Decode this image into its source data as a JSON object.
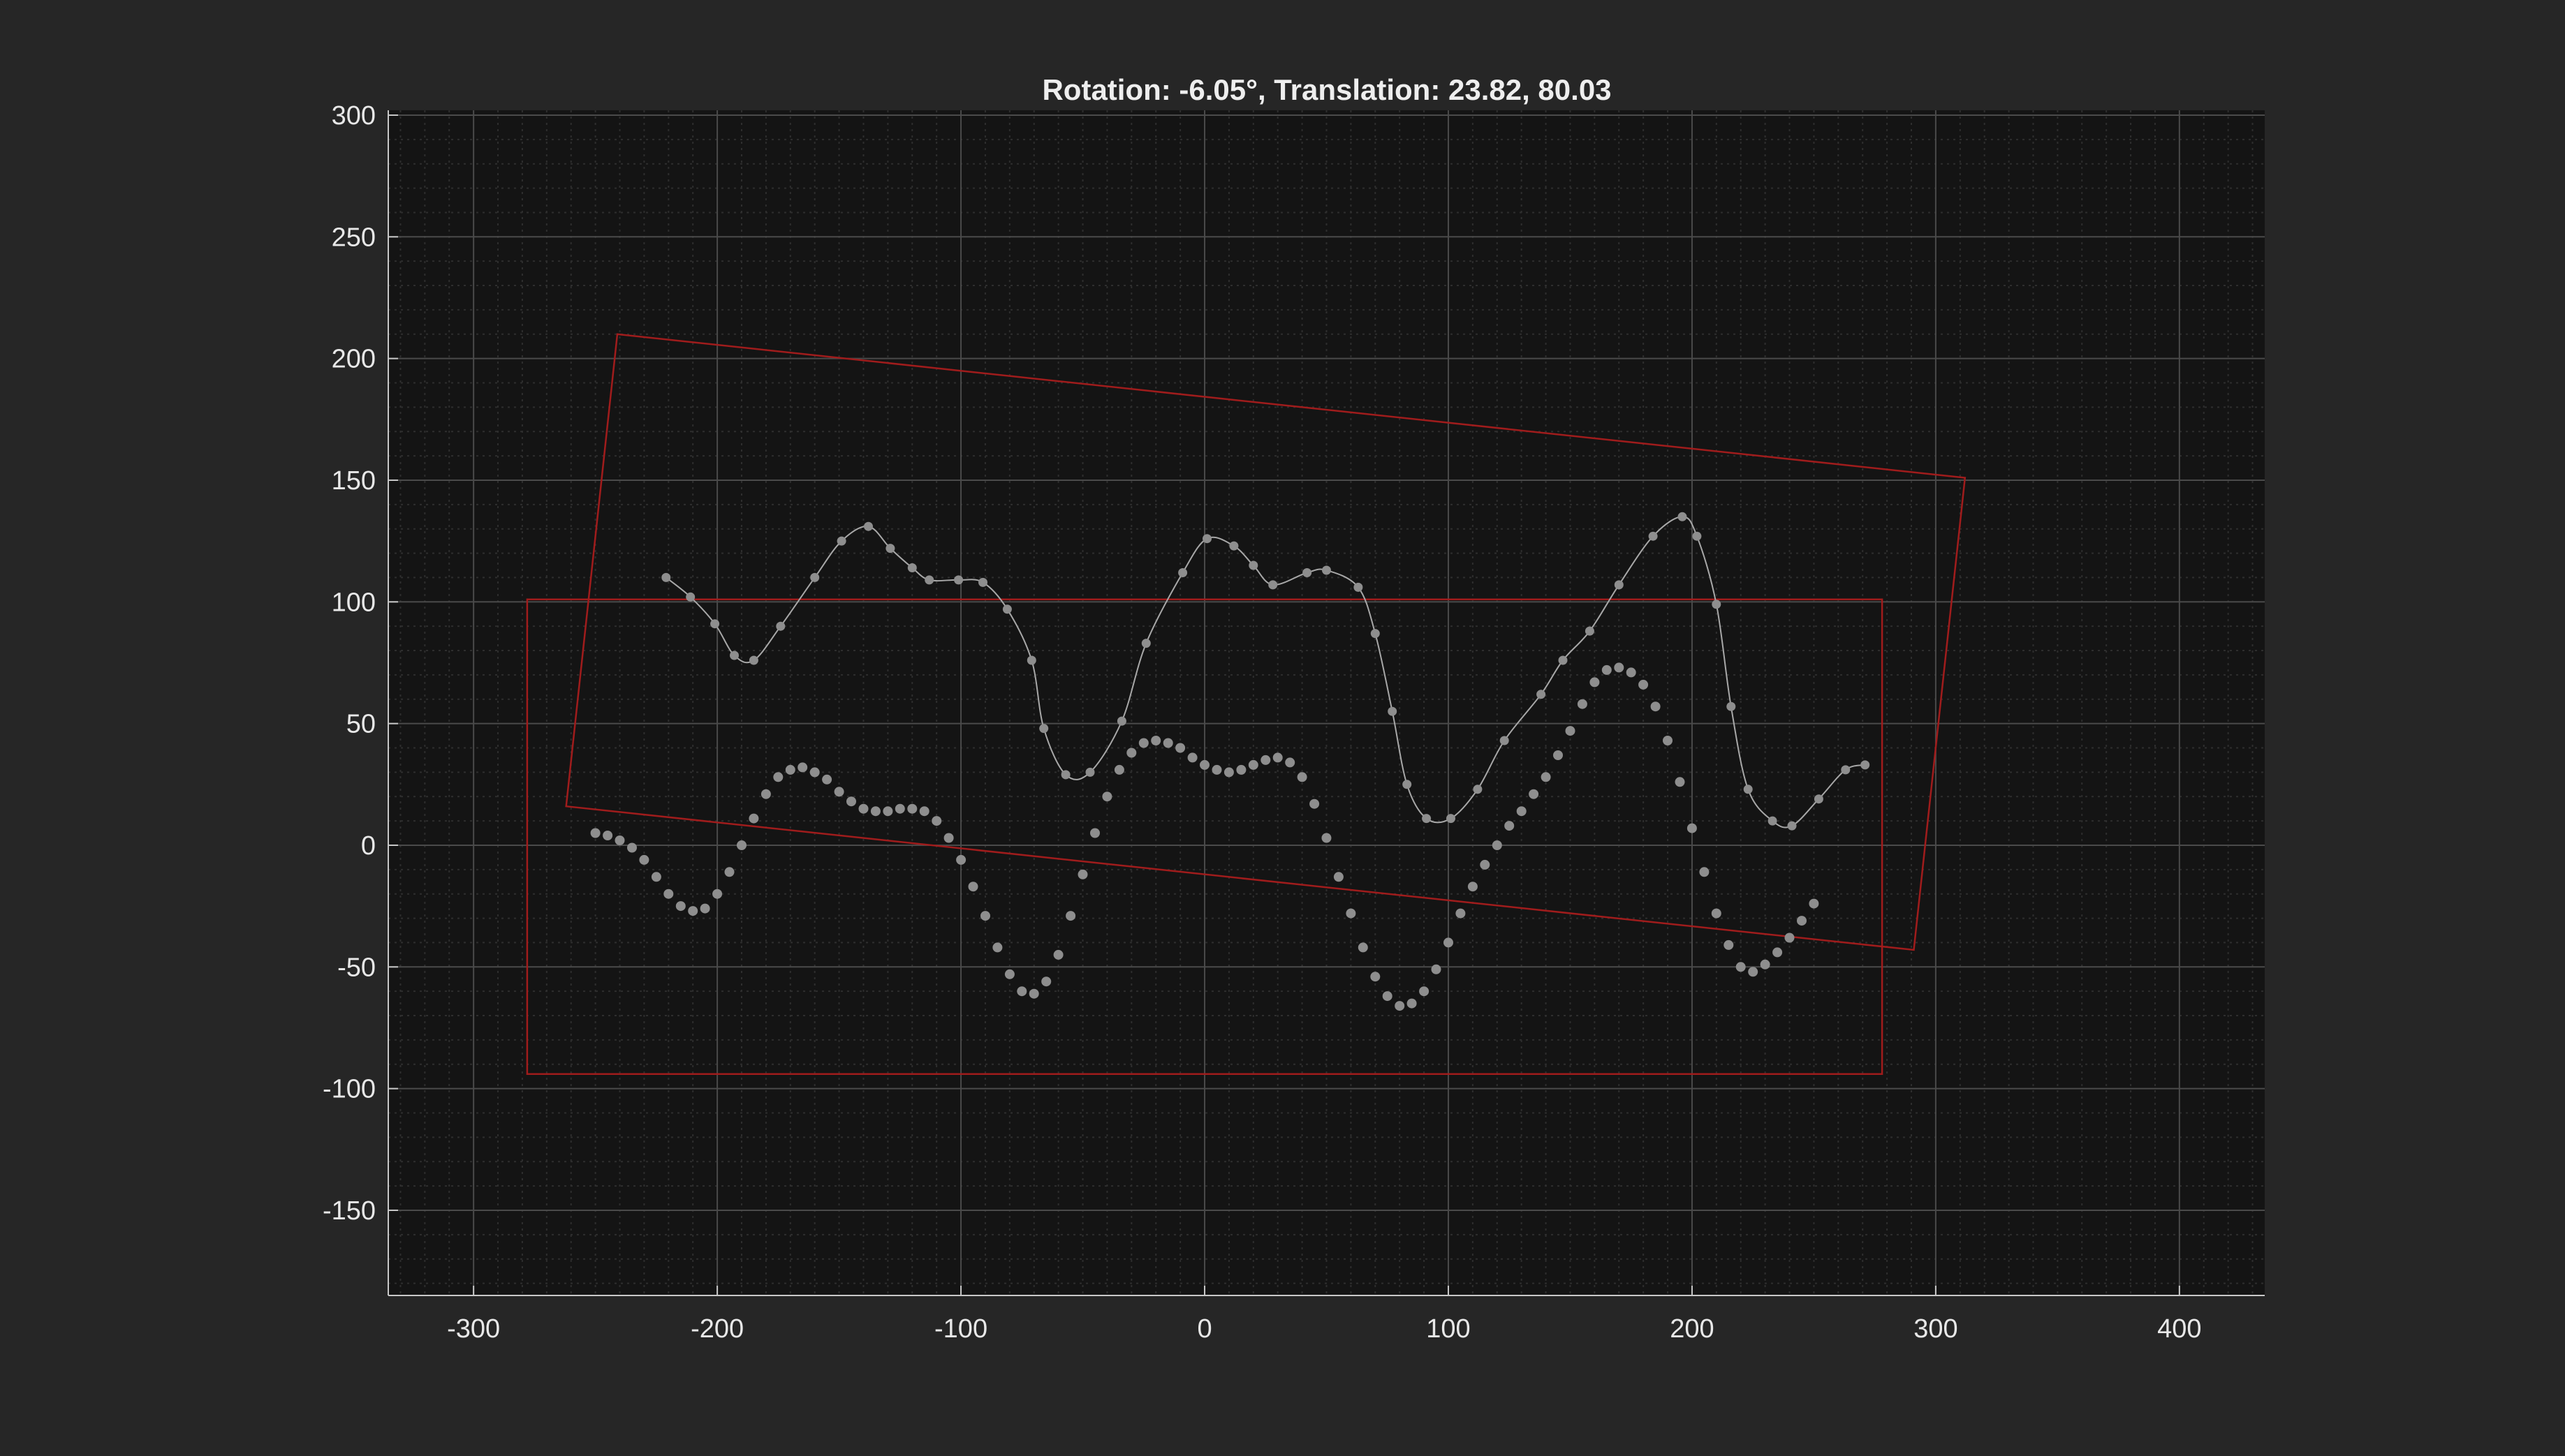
{
  "chart_data": {
    "type": "line",
    "title": "Rotation: -6.05°, Translation: 23.82, 80.03",
    "xlabel": "",
    "ylabel": "",
    "xlim": [
      -335,
      435
    ],
    "ylim": [
      -185,
      302
    ],
    "xticks": [
      -300,
      -200,
      -100,
      0,
      100,
      200,
      300,
      400
    ],
    "yticks": [
      -150,
      -100,
      -50,
      0,
      50,
      100,
      150,
      200,
      250,
      300
    ],
    "grid": true,
    "minor_grid": true,
    "colors": {
      "background": "#262626",
      "axes": "#141414",
      "major_grid": "#4a4a4a",
      "minor_grid": "#2e2e2e",
      "axis_line": "#c8c8c8",
      "text": "#e8e8e8",
      "marker": "#8e8e8e",
      "curve": "#a8a8a8",
      "box": "#a01c1c"
    },
    "series": [
      {
        "style": "markers+spline",
        "points": [
          [
            -221,
            110
          ],
          [
            -211,
            102
          ],
          [
            -201,
            91
          ],
          [
            -193,
            78
          ],
          [
            -185,
            76
          ],
          [
            -174,
            90
          ],
          [
            -160,
            110
          ],
          [
            -149,
            125
          ],
          [
            -138,
            131
          ],
          [
            -129,
            122
          ],
          [
            -120,
            114
          ],
          [
            -113,
            109
          ],
          [
            -101,
            109
          ],
          [
            -91,
            108
          ],
          [
            -81,
            97
          ],
          [
            -71,
            76
          ],
          [
            -66,
            48
          ],
          [
            -57,
            29
          ],
          [
            -47,
            30
          ],
          [
            -34,
            51
          ],
          [
            -24,
            83
          ],
          [
            -9,
            112
          ],
          [
            1,
            126
          ],
          [
            12,
            123
          ],
          [
            20,
            115
          ],
          [
            28,
            107
          ],
          [
            42,
            112
          ],
          [
            50,
            113
          ],
          [
            63,
            106
          ],
          [
            70,
            87
          ],
          [
            77,
            55
          ],
          [
            83,
            25
          ],
          [
            91,
            11
          ],
          [
            101,
            11
          ],
          [
            112,
            23
          ],
          [
            123,
            43
          ],
          [
            138,
            62
          ],
          [
            147,
            76
          ],
          [
            158,
            88
          ],
          [
            170,
            107
          ],
          [
            184,
            127
          ],
          [
            196,
            135
          ],
          [
            202,
            127
          ],
          [
            210,
            99
          ],
          [
            216,
            57
          ],
          [
            223,
            23
          ],
          [
            233,
            10
          ],
          [
            241,
            8
          ],
          [
            252,
            19
          ],
          [
            263,
            31
          ],
          [
            271,
            33
          ]
        ]
      },
      {
        "style": "markers-dense",
        "points": [
          [
            -250,
            5
          ],
          [
            -245,
            4
          ],
          [
            -240,
            2
          ],
          [
            -235,
            -1
          ],
          [
            -230,
            -6
          ],
          [
            -225,
            -13
          ],
          [
            -220,
            -20
          ],
          [
            -215,
            -25
          ],
          [
            -210,
            -27
          ],
          [
            -205,
            -26
          ],
          [
            -200,
            -20
          ],
          [
            -195,
            -11
          ],
          [
            -190,
            0
          ],
          [
            -185,
            11
          ],
          [
            -180,
            21
          ],
          [
            -175,
            28
          ],
          [
            -170,
            31
          ],
          [
            -165,
            32
          ],
          [
            -160,
            30
          ],
          [
            -155,
            27
          ],
          [
            -150,
            22
          ],
          [
            -145,
            18
          ],
          [
            -140,
            15
          ],
          [
            -135,
            14
          ],
          [
            -130,
            14
          ],
          [
            -125,
            15
          ],
          [
            -120,
            15
          ],
          [
            -115,
            14
          ],
          [
            -110,
            10
          ],
          [
            -105,
            3
          ],
          [
            -100,
            -6
          ],
          [
            -95,
            -17
          ],
          [
            -90,
            -29
          ],
          [
            -85,
            -42
          ],
          [
            -80,
            -53
          ],
          [
            -75,
            -60
          ],
          [
            -70,
            -61
          ],
          [
            -65,
            -56
          ],
          [
            -60,
            -45
          ],
          [
            -55,
            -29
          ],
          [
            -50,
            -12
          ],
          [
            -45,
            5
          ],
          [
            -40,
            20
          ],
          [
            -35,
            31
          ],
          [
            -30,
            38
          ],
          [
            -25,
            42
          ],
          [
            -20,
            43
          ],
          [
            -15,
            42
          ],
          [
            -10,
            40
          ],
          [
            -5,
            36
          ],
          [
            0,
            33
          ],
          [
            5,
            31
          ],
          [
            10,
            30
          ],
          [
            15,
            31
          ],
          [
            20,
            33
          ],
          [
            25,
            35
          ],
          [
            30,
            36
          ],
          [
            35,
            34
          ],
          [
            40,
            28
          ],
          [
            45,
            17
          ],
          [
            50,
            3
          ],
          [
            55,
            -13
          ],
          [
            60,
            -28
          ],
          [
            65,
            -42
          ],
          [
            70,
            -54
          ],
          [
            75,
            -62
          ],
          [
            80,
            -66
          ],
          [
            85,
            -65
          ],
          [
            90,
            -60
          ],
          [
            95,
            -51
          ],
          [
            100,
            -40
          ],
          [
            105,
            -28
          ],
          [
            110,
            -17
          ],
          [
            115,
            -8
          ],
          [
            120,
            0
          ],
          [
            125,
            8
          ],
          [
            130,
            14
          ],
          [
            135,
            21
          ],
          [
            140,
            28
          ],
          [
            145,
            37
          ],
          [
            150,
            47
          ],
          [
            155,
            58
          ],
          [
            160,
            67
          ],
          [
            165,
            72
          ],
          [
            170,
            73
          ],
          [
            175,
            71
          ],
          [
            180,
            66
          ],
          [
            185,
            57
          ],
          [
            190,
            43
          ],
          [
            195,
            26
          ],
          [
            200,
            7
          ],
          [
            205,
            -11
          ],
          [
            210,
            -28
          ],
          [
            215,
            -41
          ],
          [
            220,
            -50
          ],
          [
            225,
            -52
          ],
          [
            230,
            -49
          ],
          [
            235,
            -44
          ],
          [
            240,
            -38
          ],
          [
            245,
            -31
          ],
          [
            250,
            -24
          ]
        ]
      }
    ],
    "rectangles": [
      {
        "name": "fixed-frame",
        "corners": [
          [
            -278,
            101
          ],
          [
            278,
            101
          ],
          [
            278,
            -94
          ],
          [
            -278,
            -94
          ]
        ]
      },
      {
        "name": "transformed-frame",
        "corners": [
          [
            -241,
            210
          ],
          [
            312,
            151
          ],
          [
            291,
            -43
          ],
          [
            -262,
            16
          ]
        ]
      }
    ]
  }
}
